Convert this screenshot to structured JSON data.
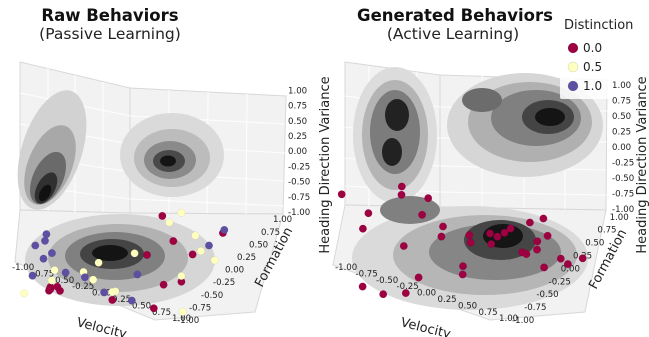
{
  "chart_data": [
    {
      "type": "scatter",
      "title": "Raw Behaviors",
      "subtitle": "(Passive Learning)",
      "xlabel": "Velocity",
      "ylabel": "Formation",
      "zlabel": "Heading Direction Variance",
      "xlim": [
        -1.0,
        1.0
      ],
      "ylim": [
        -1.0,
        1.0
      ],
      "zlim": [
        -1.0,
        1.0
      ],
      "xticks": [
        "-1.00",
        "-0.75",
        "-0.50",
        "-0.25",
        "0.00",
        "0.25",
        "0.50",
        "0.75",
        "1.00"
      ],
      "yticks": [
        "-1.00",
        "-0.75",
        "-0.50",
        "-0.25",
        "0.00",
        "0.25",
        "0.50",
        "0.75",
        "1.00"
      ],
      "zticks": [
        "-1.00",
        "-0.75",
        "-0.50",
        "-0.25",
        "0.00",
        "0.25",
        "0.50",
        "0.75",
        "1.00"
      ],
      "projection": "3d",
      "background": "marginal KDE contours on the three back walls",
      "series": [
        {
          "name": "0.0",
          "color": "#9e0142",
          "points": [
            [
              -0.55,
              -0.45,
              -0.55
            ],
            [
              -0.5,
              -0.5,
              -0.6
            ],
            [
              -0.45,
              -0.4,
              -0.6
            ],
            [
              -0.52,
              -0.48,
              -0.58
            ],
            [
              -0.4,
              -0.55,
              -0.55
            ],
            [
              -0.35,
              -0.5,
              -0.5
            ],
            [
              0.3,
              0.35,
              -0.4
            ],
            [
              0.55,
              0.4,
              -0.3
            ],
            [
              0.1,
              0.6,
              0.3
            ],
            [
              0.3,
              0.7,
              0.1
            ],
            [
              0.7,
              0.8,
              0.55
            ],
            [
              0.15,
              0.25,
              0.1
            ],
            [
              -0.1,
              0.6,
              0.7
            ],
            [
              0.35,
              -0.3,
              -0.6
            ],
            [
              0.5,
              0.1,
              -0.75
            ]
          ]
        },
        {
          "name": "0.5",
          "color": "#ffffbf",
          "points": [
            [
              -0.2,
              0.75,
              0.55
            ],
            [
              0.0,
              0.2,
              0.1
            ],
            [
              0.2,
              0.8,
              0.4
            ],
            [
              0.4,
              0.9,
              0.0
            ],
            [
              0.7,
              0.3,
              0.95
            ],
            [
              -0.3,
              -0.1,
              -0.4
            ],
            [
              -0.6,
              -0.4,
              -0.45
            ],
            [
              -0.7,
              -0.3,
              -0.3
            ],
            [
              -0.1,
              -0.35,
              -0.2
            ],
            [
              0.1,
              -0.3,
              0.0
            ],
            [
              -0.2,
              0.1,
              -0.6
            ],
            [
              0.2,
              -0.2,
              -0.5
            ],
            [
              0.55,
              0.4,
              -0.2
            ],
            [
              -0.8,
              -0.6,
              -0.7
            ],
            [
              0.65,
              0.35,
              -0.8
            ],
            [
              0.3,
              0.8,
              0.15
            ]
          ]
        },
        {
          "name": "1.0",
          "color": "#5e4fa2",
          "points": [
            [
              -0.9,
              -0.4,
              0.1
            ],
            [
              -0.85,
              -0.3,
              0.3
            ],
            [
              -0.8,
              -0.35,
              0.2
            ],
            [
              -0.9,
              -0.2,
              -0.05
            ],
            [
              -0.75,
              -0.4,
              -0.1
            ],
            [
              -0.5,
              -0.3,
              -0.3
            ],
            [
              -0.1,
              0.3,
              -0.3
            ],
            [
              0.5,
              0.95,
              0.55
            ],
            [
              0.9,
              0.5,
              0.4
            ],
            [
              0.2,
              -0.3,
              -0.5
            ],
            [
              -0.3,
              -0.2,
              -0.35
            ],
            [
              0.1,
              0.1,
              -0.7
            ],
            [
              -0.8,
              -0.5,
              -0.4
            ]
          ]
        }
      ]
    },
    {
      "type": "scatter",
      "title": "Generated  Behaviors",
      "subtitle": "(Active Learning)",
      "xlabel": "Velocity",
      "ylabel": "Formation",
      "zlabel": "Heading Direction Variance",
      "xlim": [
        -1.0,
        1.0
      ],
      "ylim": [
        -1.0,
        1.0
      ],
      "zlim": [
        -1.0,
        1.0
      ],
      "xticks": [
        "-1.00",
        "-0.75",
        "-0.50",
        "-0.25",
        "0.00",
        "0.25",
        "0.50",
        "0.75",
        "1.00"
      ],
      "yticks": [
        "-1.00",
        "-0.75",
        "-0.50",
        "-0.25",
        "0.00",
        "0.25",
        "0.50",
        "0.75",
        "1.00"
      ],
      "zticks": [
        "-1.00",
        "-0.75",
        "-0.50",
        "-0.25",
        "0.00",
        "0.25",
        "0.50",
        "0.75",
        "1.00"
      ],
      "projection": "3d",
      "background": "marginal KDE contours on the three back walls",
      "series": [
        {
          "name": "0.0",
          "color": "#9e0142",
          "points": [
            [
              -0.9,
              0.1,
              0.95
            ],
            [
              -0.75,
              0.0,
              0.85
            ],
            [
              -0.6,
              0.2,
              0.8
            ],
            [
              -0.55,
              0.1,
              0.55
            ],
            [
              -0.5,
              0.3,
              0.35
            ],
            [
              -0.45,
              0.25,
              0.2
            ],
            [
              -0.85,
              -0.6,
              0.9
            ],
            [
              -0.7,
              -0.4,
              0.6
            ],
            [
              -0.4,
              -0.2,
              0.1
            ],
            [
              -0.2,
              0.4,
              0.25
            ],
            [
              0.0,
              0.5,
              0.3
            ],
            [
              0.2,
              0.6,
              0.4
            ],
            [
              0.3,
              0.75,
              0.5
            ],
            [
              0.1,
              0.45,
              0.15
            ],
            [
              0.35,
              0.8,
              0.2
            ],
            [
              0.5,
              0.7,
              0.1
            ],
            [
              0.4,
              0.6,
              0.05
            ],
            [
              0.6,
              0.9,
              -0.05
            ],
            [
              0.7,
              0.65,
              -0.15
            ],
            [
              0.8,
              0.85,
              -0.1
            ],
            [
              0.9,
              0.95,
              0.0
            ],
            [
              -0.8,
              -0.4,
              -0.6
            ],
            [
              -0.6,
              -0.3,
              -0.7
            ],
            [
              -0.3,
              -0.1,
              -0.4
            ],
            [
              0.0,
              0.2,
              -0.2
            ],
            [
              0.1,
              -0.5,
              -0.55
            ],
            [
              0.15,
              0.1,
              -0.3
            ],
            [
              0.05,
              0.55,
              0.25
            ],
            [
              -0.1,
              0.35,
              0.15
            ],
            [
              0.25,
              0.5,
              0.35
            ],
            [
              0.45,
              0.85,
              0.3
            ],
            [
              0.55,
              0.55,
              0.05
            ],
            [
              -0.95,
              -0.3,
              0.3
            ],
            [
              0.3,
              0.9,
              0.55
            ]
          ]
        }
      ]
    }
  ],
  "legend": {
    "title": "Distinction",
    "items": [
      {
        "label": "0.0",
        "color": "#9e0142"
      },
      {
        "label": "0.5",
        "color": "#ffffbf"
      },
      {
        "label": "1.0",
        "color": "#5e4fa2"
      }
    ]
  }
}
